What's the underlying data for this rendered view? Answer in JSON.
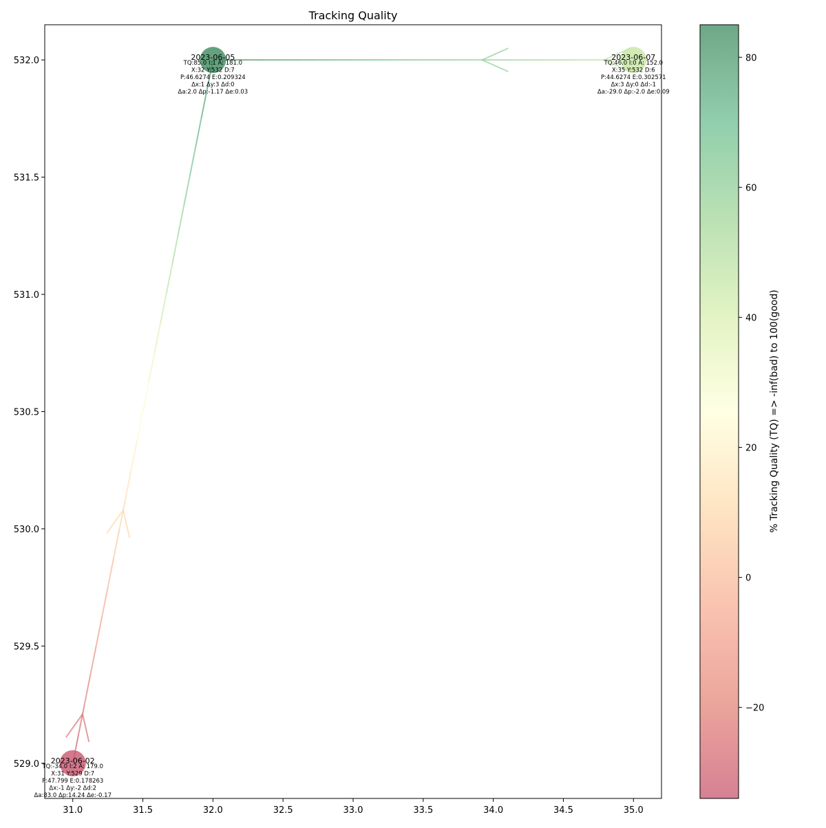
{
  "chart_data": {
    "type": "scatter",
    "title": "Tracking Quality",
    "xlabel": "",
    "ylabel": "",
    "xlim": [
      30.8,
      35.2
    ],
    "ylim": [
      528.85,
      532.15
    ],
    "x_ticks": [
      31.0,
      31.5,
      32.0,
      32.5,
      33.0,
      33.5,
      34.0,
      34.5,
      35.0
    ],
    "y_ticks": [
      529.0,
      529.5,
      530.0,
      530.5,
      531.0,
      531.5,
      532.0
    ],
    "x_tick_labels": [
      "31.0",
      "31.5",
      "32.0",
      "32.5",
      "33.0",
      "33.5",
      "34.0",
      "34.5",
      "35.0"
    ],
    "y_tick_labels": [
      "529.0",
      "529.5",
      "530.0",
      "530.5",
      "531.0",
      "531.5",
      "532.0"
    ],
    "grid": false,
    "points": [
      {
        "date": "2023-06-02",
        "x": 31,
        "y": 529,
        "tq": -34.0,
        "color": "#c9566f",
        "lines": [
          "TQ:-34.0 I:2 A: 179.0",
          "X:31 Y:529 D:7",
          "P:47.799 E:0.178263",
          "Δx:-1 Δy:-2 Δd:2",
          "Δa:83.0 Δp:14.24 Δe:-0.17"
        ]
      },
      {
        "date": "2023-06-05",
        "x": 32,
        "y": 532,
        "tq": 85.0,
        "color": "#3f8a5e",
        "lines": [
          "TQ:85.0 I:1 A: 181.0",
          "X:32 Y:532 D:7",
          "P:46.6274 E:0.209324",
          "Δx:1 Δy:3 Δd:0",
          "Δa:2.0 Δp:-1.17 Δe:0.03"
        ]
      },
      {
        "date": "2023-06-07",
        "x": 35,
        "y": 532,
        "tq": 46.0,
        "color": "#c7e6a2",
        "lines": [
          "TQ:46.0 I:0 A: 152.0",
          "X:35 Y:532 D:6",
          "P:44.6274 E:0.302571",
          "Δx:3 Δy:0 Δd:-1",
          "Δa:-29.0 Δp:-2.0 Δe:0.09"
        ]
      }
    ],
    "arrows": [
      {
        "from": [
          31,
          529
        ],
        "to": [
          32,
          532
        ],
        "tq_from": -34.0,
        "tq_to": 85.0
      },
      {
        "from": [
          35,
          532
        ],
        "to": [
          32,
          532
        ],
        "tq_from": 46.0,
        "tq_to": 85.0
      }
    ],
    "colorbar": {
      "label": "% Tracking Quality (TQ) => -inf(bad) to 100(good)",
      "min": -34.0,
      "max": 85.0,
      "ticks": [
        -20,
        0,
        20,
        40,
        60,
        80
      ],
      "tick_labels": [
        "−20",
        "0",
        "20",
        "40",
        "60",
        "80"
      ],
      "colormap_stops": [
        "#c9566f",
        "#e5887b",
        "#f8b096",
        "#fedcae",
        "#ffffdb",
        "#d9efae",
        "#a3d79a",
        "#6cbe92",
        "#3f8a5e"
      ]
    }
  }
}
